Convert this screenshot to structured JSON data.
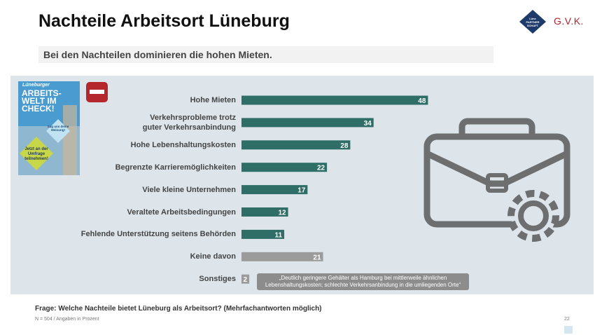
{
  "header": {
    "title": "Nachteile Arbeitsort Lüneburg",
    "subtitle": "Bei den Nachteilen dominieren die hohen Mieten."
  },
  "logo": {
    "badge": "Lüne\nPARTNER\nSCHAFT",
    "brand": "G.V.K."
  },
  "poster": {
    "brand": "Lüneburger",
    "headline": "ARBEITS-\nWELT IM\nCHECK!",
    "bubble": "Sag uns deine Meinung!",
    "cta": "Jetzt an der Umfrage teilnehmen!"
  },
  "chart_data": {
    "type": "bar",
    "orientation": "horizontal",
    "categories": [
      "Hohe Mieten",
      "Verkehrsprobleme trotz\nguter Verkehrsanbindung",
      "Hohe Lebenshaltungskosten",
      "Begrenzte Karrieremöglichkeiten",
      "Viele kleine Unternehmen",
      "Veraltete Arbeitsbedingungen",
      "Fehlende Unterstützung seitens Behörden",
      "Keine davon",
      "Sonstiges"
    ],
    "values": [
      48,
      34,
      28,
      22,
      17,
      12,
      11,
      21,
      2
    ],
    "colors": [
      "#2e6e67",
      "#2e6e67",
      "#2e6e67",
      "#2e6e67",
      "#2e6e67",
      "#2e6e67",
      "#2e6e67",
      "#9b9b9b",
      "#9b9b9b"
    ],
    "annotation": "„Deutlich geringere Gehälter als Hamburg bei mittlerweile ähnlichen\nLebenshaltungskosten; schlechte Verkehrsanbindung in die umliegenden Orte“"
  },
  "footer": {
    "question": "Frage: Welche Nachteile bietet Lüneburg als Arbeitsort? (Mehrfachantworten möglich)",
    "note": "N = 504 / Angaben in Prozent",
    "page": "22"
  }
}
